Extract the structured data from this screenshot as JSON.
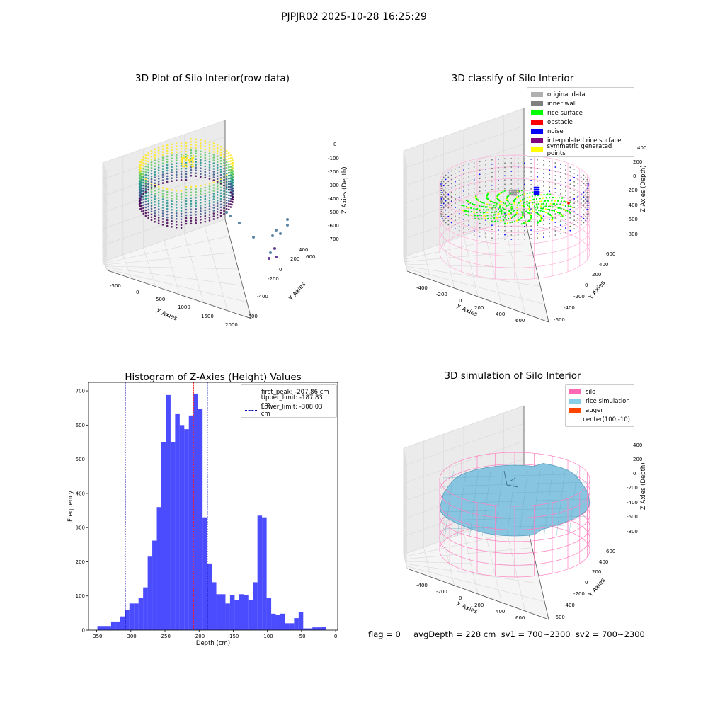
{
  "suptitle": "PJPJR02 2025-10-28 16:25:29",
  "panels": {
    "p1": {
      "title": "3D Plot of Silo Interior(row data)",
      "xlabel": "X Axies",
      "ylabel": "Y Axies",
      "zlabel": "Z Axies (Depth)",
      "xticks": [
        "-500",
        "0",
        "500",
        "1000",
        "1500",
        "2000"
      ],
      "yticks": [
        "-600",
        "-400",
        "-200",
        "0",
        "200",
        "400",
        "600"
      ],
      "zticks": [
        "0",
        "-100",
        "-200",
        "-300",
        "-400",
        "-500",
        "-600",
        "-700"
      ]
    },
    "p2": {
      "title": "3D classify of Silo Interior",
      "xlabel": "X Axies",
      "ylabel": "Y Axies",
      "zlabel": "Z Axies (Depth)",
      "xticks": [
        "-400",
        "-200",
        "0",
        "200",
        "400",
        "600"
      ],
      "yticks": [
        "-600",
        "-400",
        "-200",
        "0",
        "200",
        "400",
        "600"
      ],
      "zticks": [
        "200",
        "0",
        "-200",
        "-400",
        "-600",
        "-800"
      ],
      "ztick_hidden": "400",
      "legend": [
        {
          "label": "original data",
          "color": "#b0b0b0"
        },
        {
          "label": "inner wall",
          "color": "#808080"
        },
        {
          "label": "rice surface",
          "color": "#00ff00"
        },
        {
          "label": "obstacle",
          "color": "#ff0000"
        },
        {
          "label": "noise",
          "color": "#0000ff"
        },
        {
          "label": "interpolated rice surface",
          "color": "#800080"
        },
        {
          "label": "symmetric generated points",
          "color": "#ffff00"
        }
      ]
    },
    "p4": {
      "title": "3D simulation of Silo Interior",
      "xlabel": "X Axies",
      "ylabel": "Y Axies",
      "zlabel": "Z Axies (Depth)",
      "xticks": [
        "-400",
        "-200",
        "0",
        "200",
        "400",
        "600"
      ],
      "yticks": [
        "-600",
        "-400",
        "-200",
        "0",
        "200",
        "400",
        "600"
      ],
      "zticks": [
        "400",
        "200",
        "0",
        "-200",
        "-400",
        "-600",
        "-800"
      ],
      "legend": [
        {
          "label": "silo",
          "color": "#ff69b4"
        },
        {
          "label": "rice simulation",
          "color": "#87ceeb"
        },
        {
          "label": "auger",
          "color": "#ff4500"
        },
        {
          "label": "center(100,-10)",
          "color": ""
        }
      ]
    }
  },
  "footer": {
    "text": "flag = 0     avgDepth = 228 cm  sv1 = 700~2300  sv2 = 700~2300"
  },
  "chart_data": {
    "type": "bar",
    "title": "Histogram of Z-Axies (Height) Values",
    "xlabel": "Depth (cm)",
    "ylabel": "Frequency",
    "xlim": [
      -362,
      3
    ],
    "ylim": [
      0,
      725
    ],
    "xticks": [
      -350,
      -300,
      -250,
      -200,
      -150,
      -100,
      -50,
      0
    ],
    "yticks": [
      0,
      100,
      200,
      300,
      400,
      500,
      600,
      700
    ],
    "bar_color": "#0000ff",
    "bin_start": -349,
    "bin_width": 6.7,
    "values": [
      12,
      12,
      12,
      25,
      25,
      40,
      60,
      78,
      78,
      95,
      125,
      215,
      262,
      360,
      550,
      688,
      550,
      632,
      600,
      588,
      628,
      692,
      648,
      330,
      195,
      140,
      105,
      105,
      78,
      102,
      88,
      105,
      102,
      88,
      140,
      335,
      330,
      95,
      48,
      45,
      48,
      20,
      20,
      35,
      52,
      5,
      5,
      8,
      8,
      10
    ],
    "lines": [
      {
        "label": "first_peak: -207.86 cm",
        "x": -207.86,
        "color": "#ff0000"
      },
      {
        "label": "Upper_limit: -187.83 cm",
        "x": -187.83,
        "color": "#0000aa"
      },
      {
        "label": "Lower_limit: -308.03 cm",
        "x": -308.03,
        "color": "#0000aa"
      }
    ]
  }
}
